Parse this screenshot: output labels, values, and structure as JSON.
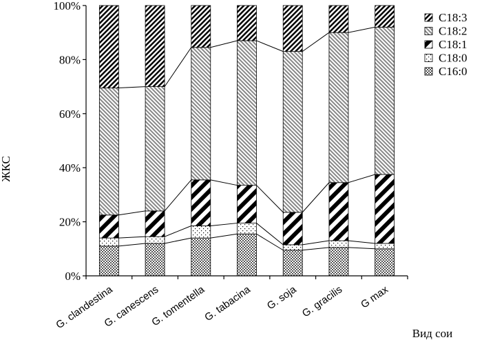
{
  "chart_data": {
    "type": "bar",
    "stacked": true,
    "percent": true,
    "categories": [
      "G. clandestina",
      "G. canescens",
      "G. tomentella",
      "G. tabacina",
      "G. soja",
      "G. gracilis",
      "G max"
    ],
    "series": [
      {
        "name": "C16:0",
        "values": [
          11,
          12,
          14,
          15.5,
          9.5,
          10.5,
          10
        ]
      },
      {
        "name": "C18:0",
        "values": [
          3,
          2.5,
          4.5,
          4,
          2,
          2.5,
          2
        ]
      },
      {
        "name": "C18:1",
        "values": [
          8.5,
          9.5,
          17,
          14,
          12,
          21.5,
          25.5
        ]
      },
      {
        "name": "C18:2",
        "values": [
          47,
          46,
          49,
          53.5,
          59.5,
          55.5,
          54.5
        ]
      },
      {
        "name": "C18:3",
        "values": [
          30.5,
          30,
          15.5,
          13,
          17,
          10,
          8
        ]
      }
    ],
    "ylabel": "ЖКС",
    "xlabel": "Вид сои",
    "ylim": [
      0,
      100
    ],
    "yticks": [
      "0%",
      "20%",
      "40%",
      "60%",
      "80%",
      "100%"
    ],
    "legend": "right",
    "connector_lines": true
  }
}
